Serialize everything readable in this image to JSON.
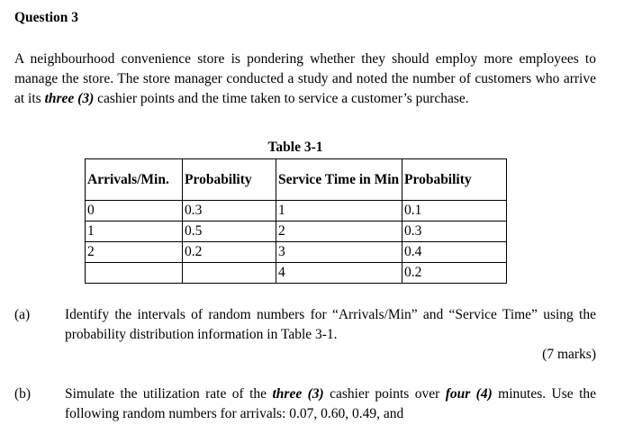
{
  "doc": {
    "title": "Question 3",
    "intro": {
      "seg1": "A neighbourhood convenience store is pondering whether they should employ more employees to manage the store. The store manager conducted a study and noted the number of customers who arrive at its ",
      "seg2": "three (3)",
      "seg3": " cashier points and the time taken to service a customer’s purchase."
    },
    "table": {
      "caption": "Table 3-1",
      "headers": [
        "Arrivals/Min.",
        "Probability",
        "Service Time in Min",
        "Probability"
      ],
      "rows": [
        [
          "0",
          "0.3",
          "1",
          "0.1"
        ],
        [
          "1",
          "0.5",
          "2",
          "0.3"
        ],
        [
          "2",
          "0.2",
          "3",
          "0.4"
        ],
        [
          "",
          "",
          "4",
          "0.2"
        ]
      ]
    },
    "part_a": {
      "label": "(a)",
      "text": "Identify the intervals of random numbers for “Arrivals/Min” and “Service Time” using the probability distribution information in Table 3-1.",
      "marks": "(7 marks)"
    },
    "part_b": {
      "label": "(b)",
      "seg1": "Simulate the utilization rate of the ",
      "seg2": "three (3)",
      "seg3": " cashier points over ",
      "seg4": "four (4)",
      "seg5": " minutes. Use the following random numbers for arrivals: 0.07, 0.60, 0.49, and"
    }
  }
}
